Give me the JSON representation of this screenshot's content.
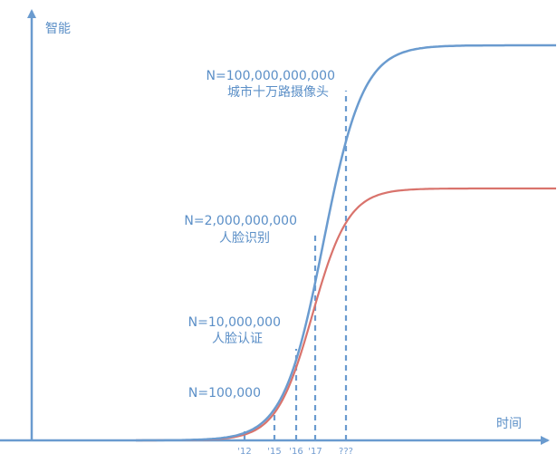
{
  "chart_data": {
    "type": "line",
    "title": "",
    "xlabel": "时间",
    "ylabel": "智能",
    "x_ticks": [
      "'12",
      "'15",
      "'16",
      "'17",
      "???"
    ],
    "grid": false,
    "series": [
      {
        "color": "#6a9bcf",
        "shape": "s-curve, higher plateau"
      },
      {
        "color": "#d9736c",
        "shape": "s-curve, lower plateau"
      }
    ],
    "annotations": [
      {
        "n": "N=100,000",
        "desc": ""
      },
      {
        "n": "N=10,000,000",
        "desc": "人脸认证"
      },
      {
        "n": "N=2,000,000,000",
        "desc": "人脸识别"
      },
      {
        "n": "N=100,000,000,000",
        "desc": "城市十万路摄像头"
      }
    ],
    "colors": {
      "axis": "#6a9bcf",
      "text": "#5b8fc7",
      "blue_curve": "#6a9bcf",
      "red_curve": "#d9736c"
    }
  }
}
